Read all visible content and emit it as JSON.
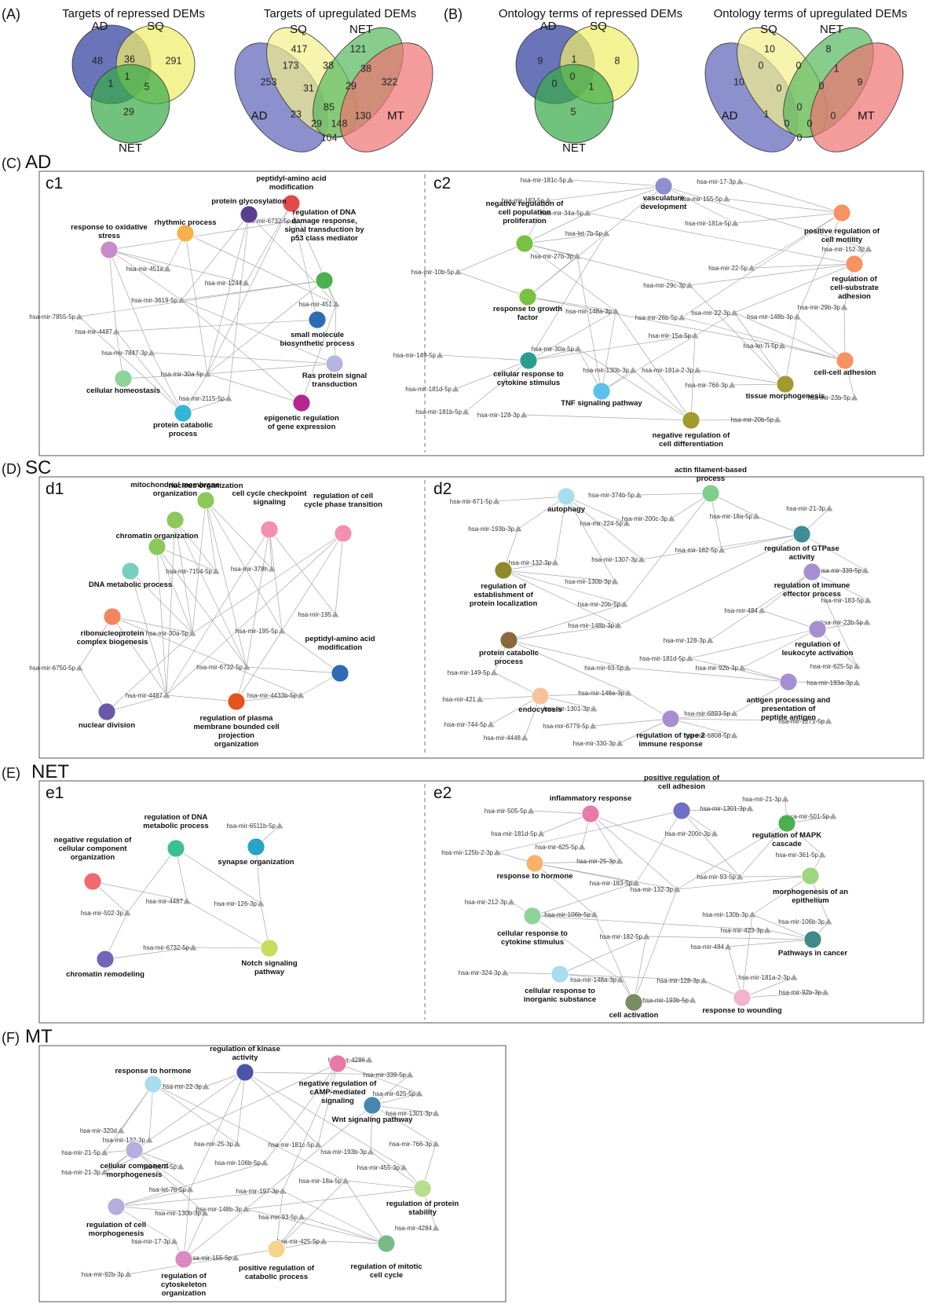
{
  "panels": {
    "A": {
      "letter": "(A)",
      "venns": [
        {
          "title": "Targets of repressed DEMs",
          "sets": [
            {
              "label": "AD",
              "color": "#2f3f9e"
            },
            {
              "label": "SQ",
              "color": "#eeee6a"
            },
            {
              "label": "NET",
              "color": "#3aaa4a"
            }
          ],
          "regions": {
            "AD": "48",
            "SQ": "291",
            "NET": "29",
            "AD_SQ": "36",
            "AD_NET": "1",
            "SQ_NET": "5",
            "ALL": "1"
          }
        },
        {
          "title": "Targets of upregulated DEMs",
          "sets": [
            {
              "label": "AD",
              "color": "#5b63b8"
            },
            {
              "label": "SQ",
              "color": "#f4f08c"
            },
            {
              "label": "NET",
              "color": "#56b75e"
            },
            {
              "label": "MT",
              "color": "#f07270"
            }
          ],
          "regions": [
            "253",
            "417",
            "121",
            "322",
            "173",
            "38",
            "38",
            "130",
            "31",
            "23",
            "29",
            "85",
            "29",
            "148",
            "104"
          ]
        }
      ]
    },
    "B": {
      "letter": "(B)",
      "venns": [
        {
          "title": "Ontology terms of repressed DEMs",
          "sets": [
            {
              "label": "AD",
              "color": "#2f3f9e"
            },
            {
              "label": "SQ",
              "color": "#eeee6a"
            },
            {
              "label": "NET",
              "color": "#3aaa4a"
            }
          ],
          "regions": {
            "AD": "9",
            "SQ": "8",
            "NET": "5",
            "AD_SQ": "1",
            "AD_NET": "0",
            "SQ_NET": "1",
            "ALL": "0"
          }
        },
        {
          "title": "Ontology terms of upregulated DEMs",
          "sets": [
            {
              "label": "AD",
              "color": "#5b63b8"
            },
            {
              "label": "SQ",
              "color": "#f4f08c"
            },
            {
              "label": "NET",
              "color": "#56b75e"
            },
            {
              "label": "MT",
              "color": "#f07270"
            }
          ],
          "regions": [
            "10",
            "10",
            "8",
            "9",
            "0",
            "0",
            "1",
            "0",
            "0",
            "1",
            "0",
            "0",
            "0",
            "0",
            "0"
          ]
        }
      ]
    },
    "C": {
      "letter": "(C)",
      "title": "AD",
      "sub": [
        {
          "label": "c1",
          "terms": [
            {
              "label": "peptidyl-amino acid modification",
              "color": "#e34a4a"
            },
            {
              "label": "protein glycosylation",
              "color": "#5a3e92"
            },
            {
              "label": "rhythmic process",
              "color": "#f7b04e"
            },
            {
              "label": "response to oxidative stress",
              "color": "#c88cc8"
            },
            {
              "label": "regulation of DNA damage response, signal transduction by p53 class mediator",
              "color": "#4caf50"
            },
            {
              "label": "small molecule biosynthetic process",
              "color": "#2f6bb4"
            },
            {
              "label": "Ras protein signal transduction",
              "color": "#b5b5de"
            },
            {
              "label": "cellular homeostasis",
              "color": "#8fd39a"
            },
            {
              "label": "epigenetic regulation of gene expression",
              "color": "#b5268f"
            },
            {
              "label": "protein catabolic process",
              "color": "#33b5d5"
            }
          ],
          "mirnas": [
            "hsa-mir-6732-5p",
            "hsa-mir-451a",
            "hsa-mir-1244",
            "hsa-mir-3619-5p",
            "hsa-mir-451",
            "hsa-mir-7855-5p",
            "hsa-mir-4487",
            "hsa-mir-7847-3p",
            "hsa-mir-30a-5p",
            "hsa-mir-2115-5p"
          ]
        },
        {
          "label": "c2",
          "terms": [
            {
              "label": "vasculature development",
              "color": "#8c8fd0"
            },
            {
              "label": "negative regulation of cell population proliferation",
              "color": "#7ac142"
            },
            {
              "label": "positive regulation of cell motility",
              "color": "#f79263"
            },
            {
              "label": "regulation of cell-substrate adhesion",
              "color": "#f79263"
            },
            {
              "label": "response to growth factor",
              "color": "#7ac142"
            },
            {
              "label": "cellular response to cytokine stimulus",
              "color": "#2a9d8f"
            },
            {
              "label": "TNF signaling pathway",
              "color": "#5bc0eb"
            },
            {
              "label": "cell-cell adhesion",
              "color": "#f79263"
            },
            {
              "label": "tissue morphogenesis",
              "color": "#a19a2e"
            },
            {
              "label": "negative regulation of cell differentiation",
              "color": "#a19a2e"
            }
          ],
          "mirnas": [
            "hsa-mir-181c-5p",
            "hsa-mir-17-3p",
            "hsa-mir-182-5p",
            "hsa-mir-155-5p",
            "hsa-mir-34a-5p",
            "hsa-mir-181a-5p",
            "hsa-let-7b-5p",
            "hsa-mir-152-3p",
            "hsa-mir-27b-3p",
            "hsa-mir-10b-5p",
            "hsa-mir-22-5p",
            "hsa-mir-29c-3p",
            "hsa-mir-148a-3p",
            "hsa-mir-26b-5p",
            "hsa-mir-22-3p",
            "hsa-mir-148b-3p",
            "hsa-mir-29b-3p",
            "hsa-mir-15a-5p",
            "hsa-let-7i-5p",
            "hsa-mir-30a-5p",
            "hsa-mir-149-5p",
            "hsa-mir-130b-3p",
            "hsa-mir-181a-2-3p",
            "hsa-mir-181d-5p",
            "hsa-mir-766-3p",
            "hsa-mir-23b-5p",
            "hsa-mir-181b-5p",
            "hsa-mir-128-3p",
            "hsa-mir-20b-5p"
          ]
        }
      ]
    },
    "D": {
      "letter": "(D)",
      "title": "SC",
      "sub": [
        {
          "label": "d1",
          "terms": [
            {
              "label": "nucleus organization",
              "color": "#8dc85a"
            },
            {
              "label": "mitochondrial membrane organization",
              "color": "#8dc85a"
            },
            {
              "label": "cell cycle checkpoint signaling",
              "color": "#f48fb1"
            },
            {
              "label": "regulation of cell cycle phase transition",
              "color": "#f48fb1"
            },
            {
              "label": "chromatin organization",
              "color": "#8dc85a"
            },
            {
              "label": "DNA metabolic process",
              "color": "#77cfc2"
            },
            {
              "label": "ribonucleoprotein complex biogenesis",
              "color": "#f48561"
            },
            {
              "label": "peptidyl-amino acid modification",
              "color": "#2f6bb4"
            },
            {
              "label": "nuclear division",
              "color": "#6a58a8"
            },
            {
              "label": "regulation of plasma membrane bounded cell projection organization",
              "color": "#e5541f"
            }
          ],
          "mirnas": [
            "hsa-mir-7154-5p",
            "hsa-mir-378h",
            "hsa-mir-195",
            "hsa-mir-30a-5p",
            "hsa-mir-195-5p",
            "hsa-mir-6750-5p",
            "hsa-mir-6732-5p",
            "hsa-mir-4487",
            "hsa-mir-4433b-5p"
          ]
        },
        {
          "label": "d2",
          "terms": [
            {
              "label": "actin filament-based process",
              "color": "#7fcf8c"
            },
            {
              "label": "autophagy",
              "color": "#a8dcef"
            },
            {
              "label": "regulation of GTPase activity",
              "color": "#3e8c96"
            },
            {
              "label": "regulation of establishment of protein localization",
              "color": "#8c8a2a"
            },
            {
              "label": "regulation of immune effector process",
              "color": "#a58fd1"
            },
            {
              "label": "protein catabolic process",
              "color": "#8a6840"
            },
            {
              "label": "regulation of leukocyte activation",
              "color": "#a58fd1"
            },
            {
              "label": "antigen processing and presentation of peptide antigen",
              "color": "#a58fd1"
            },
            {
              "label": "endocytosis",
              "color": "#f7c39d"
            },
            {
              "label": "regulation of type 2 immune response",
              "color": "#a58fd1"
            }
          ],
          "mirnas": [
            "hsa-mir-671-5p",
            "hsa-mir-374b-5p",
            "hsa-mir-224-5p",
            "hsa-mir-200c-3p",
            "hsa-mir-18a-5p",
            "hsa-mir-21-3p",
            "hsa-mir-193b-3p",
            "hsa-mir-182-5p",
            "hsa-mir-132-3p",
            "hsa-mir-1307-3p",
            "hsa-mir-339-5p",
            "hsa-mir-130b-3p",
            "hsa-mir-183-5p",
            "hsa-mir-20b-5p",
            "hsa-mir-484",
            "hsa-mir-23b-5p",
            "hsa-mir-148b-3p",
            "hsa-mir-128-3p",
            "hsa-mir-181d-5p",
            "hsa-mir-625-5p",
            "hsa-mir-149-5p",
            "hsa-mir-93-5p",
            "hsa-mir-92b-3p",
            "hsa-mir-193a-3p",
            "hsa-mir-148a-3p",
            "hsa-mir-421",
            "hsa-mir-1301-3p",
            "hsa-mir-6893-5p",
            "hsa-mir-1271-5p",
            "hsa-mir-744-5p",
            "hsa-mir-6779-5p",
            "hsa-mir-6808-5p",
            "hsa-mir-4448",
            "hsa-mir-330-3p"
          ]
        }
      ]
    },
    "E": {
      "letter": "(E)",
      "title": "NET",
      "sub": [
        {
          "label": "e1",
          "terms": [
            {
              "label": "regulation of DNA metabolic process",
              "color": "#3dbf95"
            },
            {
              "label": "synapse organization",
              "color": "#2aa3c8"
            },
            {
              "label": "negative regulation of cellular component organization",
              "color": "#f2696e"
            },
            {
              "label": "Notch signaling pathway",
              "color": "#c5dc5e"
            },
            {
              "label": "chromatin remodeling",
              "color": "#7565b8"
            }
          ],
          "mirnas": [
            "hsa-mir-6511b-5p",
            "hsa-mir-4487",
            "hsa-mir-502-3p",
            "hsa-mir-126-3p",
            "hsa-mir-6732-5p"
          ]
        },
        {
          "label": "e2",
          "terms": [
            {
              "label": "positive regulation of cell adhesion",
              "color": "#6f6fc4"
            },
            {
              "label": "inflammatory response",
              "color": "#e87aa8"
            },
            {
              "label": "regulation of MAPK cascade",
              "color": "#4caf50"
            },
            {
              "label": "response to hormone",
              "color": "#f7b26e"
            },
            {
              "label": "morphogenesis of an epithelium",
              "color": "#9ed67f"
            },
            {
              "label": "cellular response to cytokine stimulus",
              "color": "#8ed39a"
            },
            {
              "label": "Pathways in cancer",
              "color": "#3e8c85"
            },
            {
              "label": "cellular response to inorganic substance",
              "color": "#a8dcef"
            },
            {
              "label": "cell activation",
              "color": "#7b8c63"
            },
            {
              "label": "response to wounding",
              "color": "#f3b2d0"
            }
          ],
          "mirnas": [
            "hsa-mir-21-3p",
            "hsa-mir-505-5p",
            "hsa-mir-1301-3p",
            "hsa-mir-501-5p",
            "hsa-mir-181d-5p",
            "hsa-mir-200c-3p",
            "hsa-mir-625-5p",
            "hsa-mir-125b-2-3p",
            "hsa-mir-25-3p",
            "hsa-mir-361-5p",
            "hsa-mir-183-5p",
            "hsa-mir-93-5p",
            "hsa-mir-132-3p",
            "hsa-mir-212-3p",
            "hsa-mir-106b-5p",
            "hsa-mir-130b-3p",
            "hsa-mir-106b-3p",
            "hsa-mir-423-3p",
            "hsa-mir-182-5p",
            "hsa-mir-484",
            "hsa-mir-324-3p",
            "hsa-mir-148a-3p",
            "hsa-mir-128-3p",
            "hsa-mir-181a-2-3p",
            "hsa-mir-92b-3p",
            "hsa-mir-193b-5p"
          ]
        }
      ]
    },
    "F": {
      "letter": "(F)",
      "title": "MT",
      "terms": [
        {
          "label": "regulation of kinase activity",
          "color": "#4a55a8"
        },
        {
          "label": "response to hormone",
          "color": "#a8dcef"
        },
        {
          "label": "negative regulation of cAMP-mediated signaling",
          "color": "#e87aa8"
        },
        {
          "label": "Wnt signaling pathway",
          "color": "#4a86b0"
        },
        {
          "label": "cellular component morphogenesis",
          "color": "#b6aede"
        },
        {
          "label": "regulation of protein stability",
          "color": "#b7dd8e"
        },
        {
          "label": "regulation of cell morphogenesis",
          "color": "#b6aede"
        },
        {
          "label": "regulation of mitotic cell cycle",
          "color": "#7ab98a"
        },
        {
          "label": "regulation of cytoskeleton organization",
          "color": "#d98ac3"
        },
        {
          "label": "positive regulation of catabolic process",
          "color": "#f7d38d"
        }
      ],
      "mirnas": [
        "hsa-mir-4286",
        "hsa-mir-339-5p",
        "hsa-mir-625-5p",
        "hsa-mir-1301-3p",
        "hsa-mir-22-3p",
        "hsa-mir-320d",
        "hsa-mir-132-3p",
        "hsa-mir-25-3p",
        "hsa-mir-181c-5p",
        "hsa-mir-21-5p",
        "hsa-let-7i-5p",
        "hsa-mir-766-3p",
        "hsa-mir-21-3p",
        "hsa-mir-193b-3p",
        "hsa-mir-106b-5p",
        "hsa-mir-455-3p",
        "hsa-mir-18a-5p",
        "hsa-let-7b-5p",
        "hsa-mir-197-3p",
        "hsa-mir-148b-3p",
        "hsa-mir-130b-3p",
        "hsa-mir-93-5p",
        "hsa-mir-4284",
        "hsa-mir-17-3p",
        "hsa-mir-425-5p",
        "hsa-mir-155-5p",
        "hsa-mir-92b-3p"
      ]
    }
  }
}
